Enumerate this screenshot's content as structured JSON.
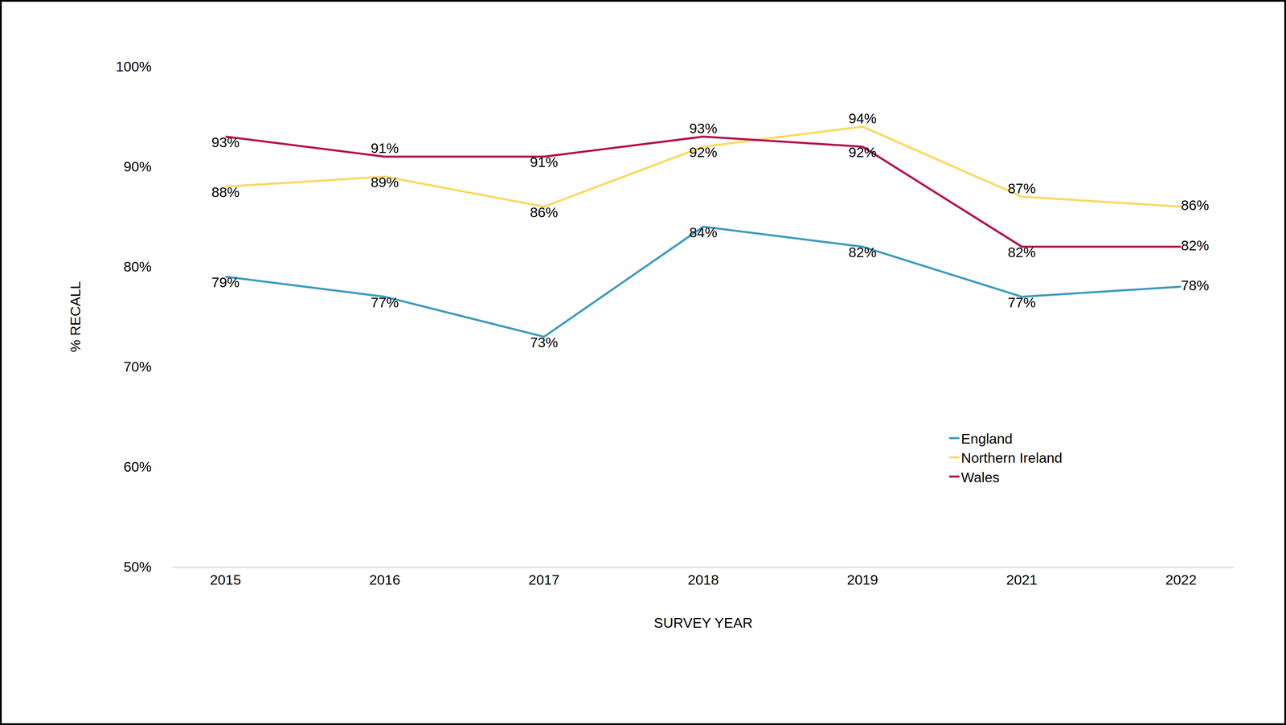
{
  "chart_data": {
    "type": "line",
    "x_label": "SURVEY YEAR",
    "y_label": "% RECALL",
    "categories": [
      "2015",
      "2016",
      "2017",
      "2018",
      "2019",
      "2021",
      "2022"
    ],
    "series": [
      {
        "name": "England",
        "color": "#3d9bc1",
        "values": [
          79,
          77,
          73,
          84,
          82,
          77,
          78
        ],
        "value_labels": [
          "79%",
          "77%",
          "73%",
          "84%",
          "82%",
          "77%",
          "78%"
        ]
      },
      {
        "name": "Northern Ireland",
        "color": "#ffd75e",
        "values": [
          88,
          89,
          86,
          92,
          94,
          87,
          86
        ],
        "value_labels": [
          "88%",
          "89%",
          "86%",
          "92%",
          "94%",
          "87%",
          "86%"
        ]
      },
      {
        "name": "Wales",
        "color": "#b5124f",
        "values": [
          93,
          91,
          91,
          93,
          92,
          82,
          82
        ],
        "value_labels": [
          "93%",
          "91%",
          "91%",
          "93%",
          "92%",
          "82%",
          "82%"
        ]
      }
    ],
    "ylim": [
      50,
      100
    ],
    "yticks": [
      {
        "value": 50,
        "label": "50%"
      },
      {
        "value": 60,
        "label": "60%"
      },
      {
        "value": 70,
        "label": "70%"
      },
      {
        "value": 80,
        "label": "80%"
      },
      {
        "value": 90,
        "label": "90%"
      },
      {
        "value": 100,
        "label": "100%"
      }
    ],
    "grid": false,
    "legend": "lower right",
    "data_labels": true
  }
}
